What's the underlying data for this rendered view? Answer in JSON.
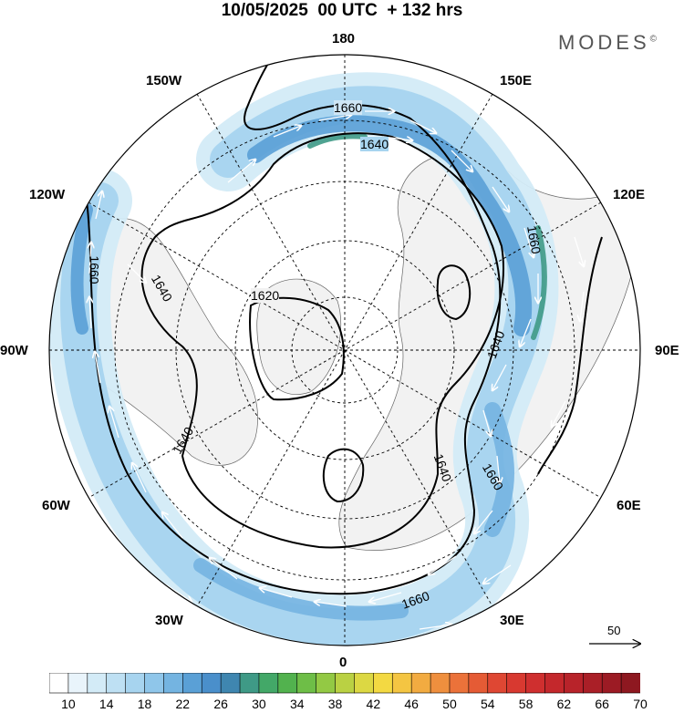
{
  "title": "10/05/2025  00 UTC  + 132 hrs",
  "brand": "MODES",
  "brand_mark": "©",
  "longitude_labels": [
    "180",
    "150E",
    "120E",
    "90E",
    "60E",
    "30E",
    "0",
    "30W",
    "60W",
    "90W",
    "120W",
    "150W"
  ],
  "contour_labels": [
    "1660",
    "1640",
    "1620",
    "1660",
    "1640",
    "1660",
    "1640",
    "1660",
    "1640",
    "1640",
    "1660",
    "1640"
  ],
  "reference_vector_label": "50",
  "colorbar": {
    "tick_labels": [
      "10",
      "14",
      "18",
      "22",
      "26",
      "30",
      "34",
      "38",
      "42",
      "46",
      "50",
      "54",
      "58",
      "62",
      "66",
      "70"
    ],
    "colors": [
      "#ffffff",
      "#e9f4fb",
      "#d3ebf7",
      "#bee0f3",
      "#a7d4ef",
      "#8fc6ea",
      "#74b4e1",
      "#5aa0d6",
      "#4a8fcb",
      "#3f86b0",
      "#3f9a86",
      "#43a868",
      "#52b24e",
      "#6ebe47",
      "#93c944",
      "#bad143",
      "#dcd843",
      "#f3d942",
      "#f4c542",
      "#f2ab41",
      "#ef8f3e",
      "#eb723a",
      "#e55b35",
      "#df4733",
      "#d83930",
      "#cf2f2f",
      "#c4282c",
      "#b8232a",
      "#aa1f27",
      "#9c1b24",
      "#8e1820"
    ]
  },
  "colors": {
    "land": "#f2f2f2",
    "jet_light": "#cfe6f5",
    "jet_mid": "#8fc4e8",
    "jet_strong": "#4f97d3",
    "jet_core": "#5ca58b"
  }
}
